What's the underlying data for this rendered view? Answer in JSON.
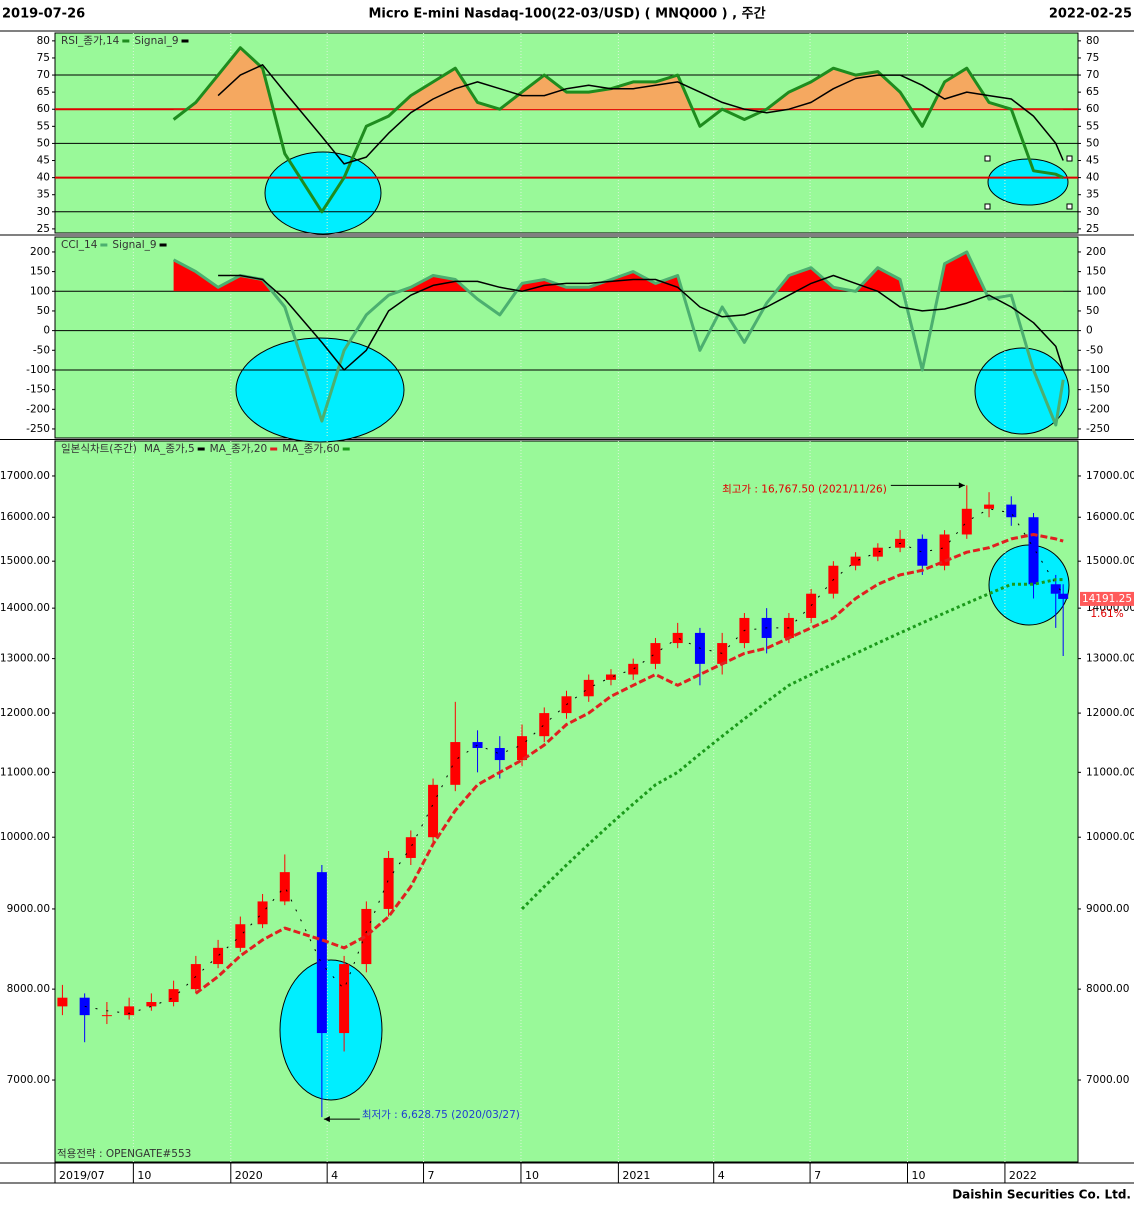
{
  "header": {
    "start": "2019-07-26",
    "title": "Micro E-mini Nasdaq-100(22-03/USD)  ( MNQ000 ) ,  주간",
    "end": "2022-02-25"
  },
  "footer": "Daishin Securities Co. Ltd.",
  "chart_data": [
    {
      "type": "line",
      "series": [
        {
          "name": "RSI_종가,14",
          "color": "#1e8c1e",
          "values": [
            null,
            null,
            null,
            null,
            null,
            57,
            62,
            70,
            78,
            72,
            47,
            30,
            40,
            55,
            58,
            64,
            68,
            72,
            62,
            60,
            65,
            70,
            65,
            65,
            66,
            68,
            68,
            70,
            55,
            60,
            57,
            60,
            65,
            68,
            72,
            70,
            71,
            65,
            55,
            68,
            72,
            62,
            60,
            42,
            41,
            40
          ]
        },
        {
          "name": "Signal_9",
          "color": "#000000",
          "values": [
            null,
            null,
            null,
            null,
            null,
            null,
            null,
            64,
            70,
            73,
            65,
            52,
            44,
            46,
            53,
            59,
            63,
            66,
            68,
            66,
            64,
            64,
            66,
            67,
            66,
            66,
            67,
            68,
            65,
            62,
            60,
            59,
            60,
            62,
            66,
            69,
            70,
            70,
            67,
            63,
            65,
            64,
            63,
            58,
            50,
            45
          ]
        }
      ],
      "fill_above": {
        "level": 60,
        "color": "#f5a860"
      },
      "hlines": [
        {
          "value": 30,
          "color": "#000000"
        },
        {
          "value": 40,
          "color": "#e00000"
        },
        {
          "value": 50,
          "color": "#000000"
        },
        {
          "value": 60,
          "color": "#e00000"
        },
        {
          "value": 70,
          "color": "#000000"
        }
      ],
      "ylim": [
        23.8,
        82.3
      ],
      "yticks": [
        25,
        30,
        35,
        40,
        45,
        50,
        55,
        60,
        65,
        70,
        75,
        80
      ]
    },
    {
      "type": "line",
      "series": [
        {
          "name": "CCI_14",
          "color": "#4caf70",
          "values": [
            null,
            null,
            null,
            null,
            null,
            180,
            150,
            110,
            140,
            130,
            60,
            -230,
            -50,
            40,
            90,
            110,
            140,
            130,
            80,
            40,
            120,
            130,
            110,
            110,
            130,
            150,
            120,
            140,
            -50,
            60,
            -30,
            70,
            140,
            160,
            110,
            100,
            160,
            130,
            -100,
            170,
            200,
            80,
            90,
            -100,
            -240,
            -125
          ]
        },
        {
          "name": "Signal_9",
          "color": "#000000",
          "values": [
            null,
            null,
            null,
            null,
            null,
            null,
            null,
            140,
            140,
            130,
            80,
            -30,
            -100,
            -50,
            50,
            90,
            115,
            125,
            125,
            110,
            100,
            115,
            120,
            120,
            125,
            130,
            130,
            110,
            60,
            35,
            40,
            60,
            90,
            120,
            140,
            120,
            100,
            60,
            50,
            55,
            70,
            90,
            60,
            20,
            -40,
            -100
          ]
        }
      ],
      "fill_above": {
        "level": 100,
        "color": "#ff0000"
      },
      "hlines": [
        {
          "value": -100,
          "color": "#000000"
        },
        {
          "value": 0,
          "color": "#000000"
        },
        {
          "value": 100,
          "color": "#000000"
        }
      ],
      "ylim": [
        -273,
        238
      ],
      "yticks": [
        -250,
        -200,
        -150,
        -100,
        -50,
        0,
        50,
        100,
        150,
        200
      ]
    },
    {
      "type": "candlestick",
      "log": true,
      "x": [
        "2019-07-26",
        "2019-08-16",
        "2019-09-06",
        "2019-09-27",
        "2019-10-18",
        "2019-11-08",
        "2019-11-29",
        "2019-12-20",
        "2020-01-10",
        "2020-01-31",
        "2020-02-21",
        "2020-03-27",
        "2020-04-17",
        "2020-05-08",
        "2020-05-29",
        "2020-06-19",
        "2020-07-10",
        "2020-07-31",
        "2020-08-21",
        "2020-09-11",
        "2020-10-02",
        "2020-10-23",
        "2020-11-13",
        "2020-12-04",
        "2020-12-25",
        "2021-01-15",
        "2021-02-05",
        "2021-02-26",
        "2021-03-19",
        "2021-04-09",
        "2021-04-30",
        "2021-05-21",
        "2021-06-11",
        "2021-07-02",
        "2021-07-23",
        "2021-08-13",
        "2021-09-03",
        "2021-09-24",
        "2021-10-15",
        "2021-11-05",
        "2021-11-26",
        "2021-12-17",
        "2022-01-07",
        "2022-01-28",
        "2022-02-18",
        "2022-02-25"
      ],
      "xlim": [
        "2019-07-19",
        "2022-03-11"
      ],
      "xticks": [
        {
          "value": "2019-07-19",
          "label": "2019/07"
        },
        {
          "value": "2019-10-01",
          "label": "10"
        },
        {
          "value": "2020-01-01",
          "label": "2020"
        },
        {
          "value": "2020-04-01",
          "label": "4"
        },
        {
          "value": "2020-07-01",
          "label": "7"
        },
        {
          "value": "2020-10-01",
          "label": "10"
        },
        {
          "value": "2021-01-01",
          "label": "2021"
        },
        {
          "value": "2021-04-01",
          "label": "4"
        },
        {
          "value": "2021-07-01",
          "label": "7"
        },
        {
          "value": "2021-10-01",
          "label": "10"
        },
        {
          "value": "2022-01-01",
          "label": "2022"
        }
      ],
      "series": [
        {
          "name": "일본식차트(주간)",
          "up_color": "#ff0000",
          "down_color": "#0000ff",
          "open": [
            7800,
            7900,
            7700,
            7700,
            7800,
            7850,
            8000,
            8300,
            8500,
            8800,
            9100,
            9500,
            7500,
            8300,
            9000,
            9700,
            10000,
            10800,
            11500,
            11400,
            11200,
            11600,
            12000,
            12300,
            12600,
            12700,
            12900,
            13300,
            13500,
            12900,
            13300,
            13800,
            13400,
            13800,
            14300,
            14900,
            15100,
            15300,
            15500,
            14900,
            15600,
            16200,
            16300,
            16000,
            14500,
            14300
          ],
          "high": [
            8050,
            7950,
            7850,
            7900,
            7950,
            8100,
            8400,
            8600,
            8900,
            9200,
            9750,
            9600,
            8400,
            9100,
            9800,
            10100,
            10900,
            12200,
            11700,
            11600,
            11800,
            12100,
            12400,
            12700,
            12800,
            13000,
            13400,
            13700,
            13600,
            13500,
            13900,
            14000,
            13900,
            14400,
            15000,
            15200,
            15400,
            15700,
            15600,
            15700,
            16767.5,
            16600,
            16500,
            16100,
            14700,
            14500
          ],
          "low": [
            7700,
            7400,
            7600,
            7650,
            7750,
            7800,
            7950,
            8250,
            8450,
            8750,
            9050,
            6628.75,
            7300,
            8200,
            8900,
            9600,
            9900,
            10700,
            11000,
            10900,
            11100,
            11500,
            11900,
            12200,
            12500,
            12600,
            12800,
            13200,
            12500,
            12700,
            13200,
            13100,
            13300,
            13700,
            14200,
            14800,
            15000,
            15200,
            14700,
            14800,
            15500,
            16000,
            15800,
            14200,
            13600,
            13050
          ],
          "close": [
            7900,
            7700,
            7700,
            7800,
            7850,
            8000,
            8300,
            8500,
            8800,
            9100,
            9500,
            7500,
            8300,
            9000,
            9700,
            10000,
            10800,
            11500,
            11400,
            11200,
            11600,
            12000,
            12300,
            12600,
            12700,
            12900,
            13300,
            13500,
            12900,
            13300,
            13800,
            13400,
            13800,
            14300,
            14900,
            15100,
            15300,
            15500,
            14900,
            15600,
            16200,
            16300,
            16000,
            14500,
            14300,
            14191.25
          ]
        },
        {
          "name": "MA_종가,5",
          "color": "#000000",
          "style": "sparse",
          "values": [
            null,
            7800,
            7750,
            7720,
            7800,
            7900,
            8150,
            8400,
            8650,
            8950,
            9300,
            8300,
            8000,
            8700,
            9400,
            9850,
            10500,
            11200,
            11450,
            11300,
            11450,
            11800,
            12150,
            12450,
            12650,
            12800,
            13100,
            13400,
            13200,
            13100,
            13550,
            13600,
            13600,
            14050,
            14600,
            15000,
            15200,
            15400,
            15200,
            15300,
            15900,
            16200,
            16100,
            15300,
            14500,
            14300
          ]
        },
        {
          "name": "MA_종가,20",
          "color": "#e02020",
          "style": "dashed",
          "values": [
            null,
            null,
            null,
            null,
            null,
            null,
            7950,
            8150,
            8400,
            8600,
            8750,
            8600,
            8500,
            8650,
            8900,
            9300,
            9900,
            10400,
            10800,
            11000,
            11200,
            11450,
            11800,
            12000,
            12300,
            12500,
            12700,
            12500,
            12700,
            12900,
            13100,
            13200,
            13400,
            13600,
            13800,
            14200,
            14500,
            14700,
            14800,
            15000,
            15200,
            15300,
            15500,
            15600,
            15500,
            15450
          ]
        },
        {
          "name": "MA_종가,60",
          "color": "#1a9a1a",
          "style": "dotted",
          "values": [
            null,
            null,
            null,
            null,
            null,
            null,
            null,
            null,
            null,
            null,
            null,
            null,
            null,
            null,
            null,
            null,
            null,
            null,
            null,
            null,
            9000,
            9300,
            9600,
            9900,
            10200,
            10500,
            10800,
            11000,
            11300,
            11600,
            11900,
            12200,
            12500,
            12700,
            12900,
            13100,
            13300,
            13500,
            13700,
            13900,
            14100,
            14300,
            14500,
            14500,
            14600,
            14600
          ]
        }
      ],
      "ylim": [
        6206,
        17896
      ],
      "yticks": [
        {
          "value": 7000,
          "label": "7000.00"
        },
        {
          "value": 8000,
          "label": "8000.00"
        },
        {
          "value": 9000,
          "label": "9000.00"
        },
        {
          "value": 10000,
          "label": "10000.00"
        },
        {
          "value": 11000,
          "label": "11000.00"
        },
        {
          "value": 12000,
          "label": "12000.00"
        },
        {
          "value": 13000,
          "label": "13000.00"
        },
        {
          "value": 14000,
          "label": "14000.00"
        },
        {
          "value": 15000,
          "label": "15000.00"
        },
        {
          "value": 16000,
          "label": "16000.00"
        },
        {
          "value": 17000,
          "label": "17000.00"
        }
      ],
      "high_annotation": {
        "label": "최고가 : 16,767.50 (2021/11/26)",
        "x": "2021-11-26",
        "value": 16767.5,
        "color": "#e00000"
      },
      "low_annotation": {
        "label": "최저가 : 6,628.75 (2020/03/27)",
        "x": "2020-03-27",
        "value": 6628.75,
        "color": "#2040d0"
      },
      "last_price": 14191.25,
      "change_label": "1.61%",
      "strategy": "적용전략 : OPENGATE#553"
    }
  ]
}
